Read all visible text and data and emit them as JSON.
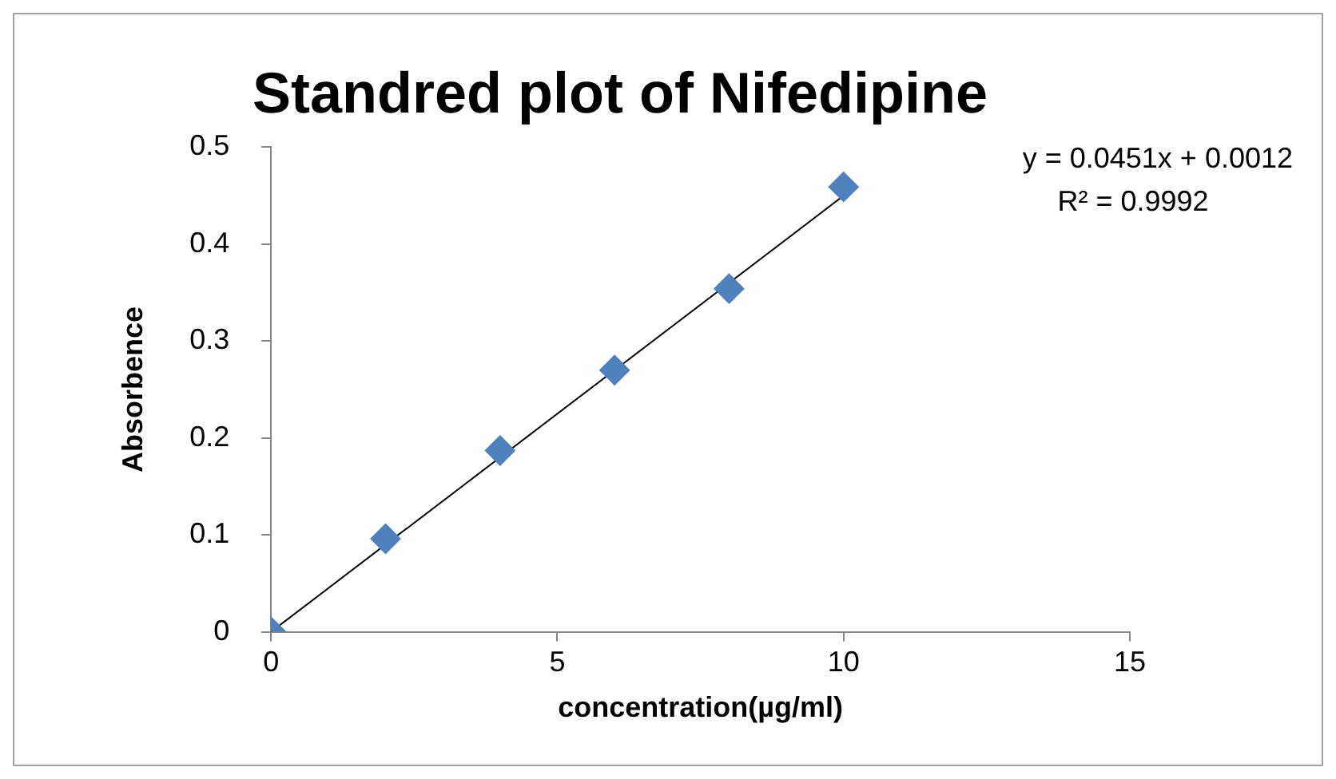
{
  "chart_data": {
    "type": "scatter",
    "title": "Standred plot of Nifedipine",
    "xlabel": "concentration(µg/ml)",
    "ylabel": "Absorbence",
    "x": [
      0,
      2,
      4,
      6,
      8,
      10
    ],
    "series": [
      {
        "type": "scatter",
        "color": "#4f81bd",
        "marker": "diamond",
        "values": [
          0,
          0.096,
          0.187,
          0.27,
          0.354,
          0.459
        ]
      },
      {
        "type": "line",
        "color": "#000000",
        "x": [
          0,
          10
        ],
        "values": [
          0,
          0.45
        ]
      }
    ],
    "xlim": [
      0,
      15
    ],
    "xticks": [
      0,
      5,
      10,
      15
    ],
    "ylim": [
      0,
      0.5
    ],
    "yticks": [
      0,
      0.1,
      0.2,
      0.3,
      0.4,
      0.5
    ],
    "annotations": [
      "y = 0.0451x + 0.0012",
      "R² = 0.9992"
    ],
    "grid": false,
    "legend": false
  }
}
